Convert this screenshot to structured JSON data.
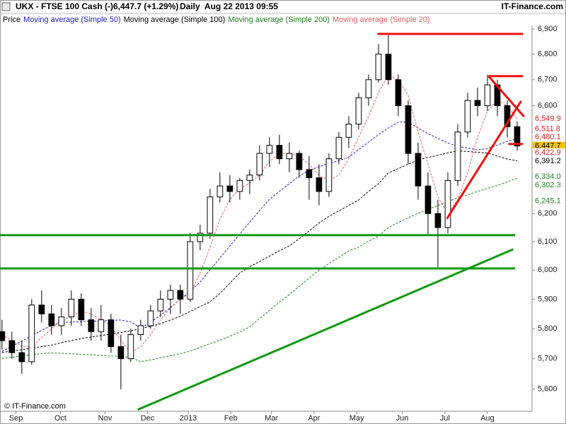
{
  "chart_data": {
    "type": "candlestick",
    "title": "UKX - FTSE 100 Cash (-)",
    "subtitle": "6,447.7 (+1.29%)",
    "date_label": "Daily  Aug 22 2013 09:55",
    "source": "IT-Finance.com",
    "watermark": "© IT-Finance.com",
    "price_legend": "Price",
    "up_color": "#ffffff",
    "down_color": "#000000",
    "log_scale": true,
    "x": [
      0,
      1,
      2,
      3,
      4,
      5,
      6,
      7,
      8,
      9,
      10,
      11,
      12,
      13,
      14,
      15,
      16,
      17,
      18,
      19,
      20,
      21,
      22,
      23,
      24,
      25,
      26,
      27,
      28,
      29,
      30,
      31,
      32,
      33,
      34,
      35,
      36,
      37,
      38,
      39,
      40,
      41,
      42,
      43,
      44,
      45,
      46,
      47,
      48,
      49,
      50,
      51,
      52
    ],
    "open": [
      5790,
      5760,
      5720,
      5690,
      5880,
      5850,
      5810,
      5840,
      5900,
      5830,
      5790,
      5830,
      5740,
      5700,
      5780,
      5810,
      5860,
      5900,
      5930,
      5900,
      6100,
      6130,
      6260,
      6300,
      6280,
      6320,
      6340,
      6420,
      6450,
      6400,
      6420,
      6360,
      6330,
      6280,
      6400,
      6480,
      6530,
      6630,
      6700,
      6800,
      6700,
      6600,
      6420,
      6300,
      6200,
      6150,
      6320,
      6500,
      6620,
      6600,
      6680,
      6600,
      6520
    ],
    "high": [
      5830,
      5790,
      5760,
      5900,
      5930,
      5880,
      5870,
      5930,
      5920,
      5870,
      5880,
      5850,
      5780,
      5800,
      5830,
      5880,
      5930,
      5950,
      5950,
      6130,
      6160,
      6290,
      6350,
      6340,
      6330,
      6360,
      6450,
      6480,
      6490,
      6460,
      6430,
      6410,
      6380,
      6420,
      6500,
      6560,
      6650,
      6720,
      6840,
      6875,
      6720,
      6620,
      6460,
      6350,
      6250,
      6350,
      6530,
      6650,
      6670,
      6720,
      6700,
      6620,
      6540
    ],
    "low": [
      5730,
      5700,
      5650,
      5680,
      5820,
      5780,
      5780,
      5810,
      5810,
      5760,
      5760,
      5720,
      5600,
      5690,
      5760,
      5800,
      5840,
      5850,
      5850,
      5890,
      6070,
      6110,
      6240,
      6240,
      6250,
      6270,
      6320,
      6370,
      6380,
      6350,
      6330,
      6250,
      6230,
      6260,
      6380,
      6440,
      6510,
      6600,
      6690,
      6680,
      6560,
      6380,
      6250,
      6120,
      6010,
      6130,
      6300,
      6480,
      6560,
      6580,
      6560,
      6480,
      6430
    ],
    "close": [
      5760,
      5720,
      5690,
      5880,
      5850,
      5810,
      5840,
      5900,
      5830,
      5790,
      5830,
      5740,
      5700,
      5780,
      5810,
      5860,
      5900,
      5930,
      5900,
      6100,
      6130,
      6260,
      6300,
      6280,
      6320,
      6340,
      6420,
      6450,
      6400,
      6420,
      6360,
      6330,
      6280,
      6400,
      6480,
      6530,
      6630,
      6700,
      6800,
      6700,
      6600,
      6420,
      6300,
      6200,
      6150,
      6320,
      6500,
      6620,
      6600,
      6680,
      6600,
      6520,
      6447.7
    ],
    "series": [
      {
        "name": "Moving average (Simple 50)",
        "color": "#2020c0",
        "values": [
          5724,
          5741,
          5759,
          5776,
          5794,
          5811,
          5821,
          5822,
          5824,
          5825,
          5826,
          5828,
          5829,
          5823,
          5802,
          5822,
          5845,
          5872,
          5900,
          5928,
          5959,
          6001,
          6043,
          6085,
          6127,
          6169,
          6211,
          6252,
          6280,
          6308,
          6336,
          6357,
          6371,
          6383,
          6393,
          6406,
          6434,
          6462,
          6490,
          6515,
          6538,
          6538,
          6515,
          6494,
          6476,
          6459,
          6446,
          6440,
          6433,
          6438,
          6451,
          6464,
          6476
        ]
      },
      {
        "name": "Moving average (Simple 100)",
        "color": "#000000",
        "values": [
          5721,
          5725,
          5730,
          5735,
          5740,
          5745,
          5753,
          5760,
          5767,
          5772,
          5777,
          5782,
          5787,
          5793,
          5800,
          5808,
          5817,
          5829,
          5842,
          5858,
          5875,
          5891,
          5920,
          5955,
          5990,
          6012,
          6030,
          6049,
          6068,
          6085,
          6110,
          6138,
          6166,
          6190,
          6210,
          6229,
          6249,
          6280,
          6308,
          6348,
          6364,
          6380,
          6396,
          6405,
          6413,
          6422,
          6430,
          6427,
          6424,
          6421,
          6410,
          6399,
          6393
        ]
      },
      {
        "name": "Moving average (Simple 200)",
        "color": "#208020",
        "values": [
          5701,
          5705,
          5709,
          5713,
          5717,
          5719,
          5718,
          5716,
          5714,
          5713,
          5711,
          5709,
          5707,
          5705,
          5690,
          5696,
          5703,
          5710,
          5717,
          5725,
          5738,
          5750,
          5761,
          5775,
          5789,
          5806,
          5834,
          5862,
          5890,
          5916,
          5944,
          5972,
          6000,
          6023,
          6045,
          6067,
          6081,
          6101,
          6120,
          6150,
          6168,
          6185,
          6201,
          6215,
          6229,
          6243,
          6257,
          6268,
          6280,
          6291,
          6302,
          6315,
          6328
        ]
      },
      {
        "name": "Moving average (Simple 20)",
        "color": "#e06060",
        "values": [
          5780,
          5760,
          5740,
          5740,
          5770,
          5800,
          5830,
          5840,
          5860,
          5850,
          5830,
          5810,
          5760,
          5720,
          5740,
          5780,
          5830,
          5870,
          5900,
          5920,
          5990,
          6080,
          6180,
          6250,
          6290,
          6310,
          6340,
          6390,
          6420,
          6420,
          6410,
          6380,
          6340,
          6320,
          6340,
          6400,
          6480,
          6560,
          6650,
          6720,
          6700,
          6640,
          6500,
          6380,
          6260,
          6200,
          6250,
          6350,
          6480,
          6580,
          6620,
          6600,
          6550
        ]
      }
    ],
    "xlim": [
      -0.2,
      53.5
    ],
    "xticks": [
      {
        "value": 1.4,
        "label": "Sep"
      },
      {
        "value": 5.9,
        "label": "Oct"
      },
      {
        "value": 10.4,
        "label": "Nov"
      },
      {
        "value": 14.7,
        "label": "Dec"
      },
      {
        "value": 18.8,
        "label": "2013"
      },
      {
        "value": 23.1,
        "label": "Feb"
      },
      {
        "value": 27.2,
        "label": "Mar"
      },
      {
        "value": 31.5,
        "label": "Apr"
      },
      {
        "value": 35.8,
        "label": "May"
      },
      {
        "value": 40.4,
        "label": "Jun"
      },
      {
        "value": 44.7,
        "label": "Jul"
      },
      {
        "value": 49.0,
        "label": "Aug"
      }
    ],
    "ylim": [
      5529,
      6914
    ],
    "yticks": [
      {
        "value": 5600,
        "label": "5,600"
      },
      {
        "value": 5700,
        "label": "5,700"
      },
      {
        "value": 5800,
        "label": "5,800"
      },
      {
        "value": 5900,
        "label": "5,900"
      },
      {
        "value": 6000,
        "label": "6,000"
      },
      {
        "value": 6100,
        "label": "6,100"
      },
      {
        "value": 6200,
        "label": "6,200"
      },
      {
        "value": 6300,
        "label": "6,300"
      },
      {
        "value": 6400,
        "label": "6,400"
      },
      {
        "value": 6500,
        "label": "6,500"
      },
      {
        "value": 6600,
        "label": "6,600"
      },
      {
        "value": 6700,
        "label": "6,700"
      },
      {
        "value": 6800,
        "label": "6,800"
      },
      {
        "value": 6900,
        "label": "6,900"
      }
    ],
    "price_labels": [
      {
        "value": 6549.9,
        "label": "6,549.9",
        "color": "#d02020"
      },
      {
        "value": 6511.8,
        "label": "6,511.8",
        "color": "#d02020"
      },
      {
        "value": 6480.1,
        "label": "6,480.1",
        "color": "#d02020"
      },
      {
        "value": 6447.7,
        "label": "6,447.7",
        "color": "#000000",
        "background": "#f5c400"
      },
      {
        "value": 6422.9,
        "label": "6,422.9",
        "color": "#d02020"
      },
      {
        "value": 6391.2,
        "label": "6,391.2",
        "color": "#000000"
      },
      {
        "value": 6334.0,
        "label": "6,334.0",
        "color": "#208020"
      },
      {
        "value": 6302.3,
        "label": "6,302.3",
        "color": "#208020"
      },
      {
        "value": 6245.1,
        "label": "6,245.1",
        "color": "#208020"
      }
    ],
    "drawings": [
      {
        "color": "#ee1111",
        "points": [
          [
            37.9,
            6880
          ],
          [
            52.6,
            6880
          ]
        ]
      },
      {
        "color": "#ee1111",
        "points": [
          [
            49.1,
            6714
          ],
          [
            52.6,
            6714
          ]
        ]
      },
      {
        "color": "#ee1111",
        "points": [
          [
            44.9,
            6181
          ],
          [
            52.4,
            6618
          ]
        ]
      },
      {
        "color": "#ee1111",
        "points": [
          [
            49.1,
            6714
          ],
          [
            52.7,
            6558
          ]
        ]
      },
      {
        "color": "#ee1111",
        "points": [
          [
            51.1,
            6455
          ],
          [
            52.6,
            6455
          ]
        ]
      },
      {
        "color": "#119911",
        "points": [
          [
            -0.2,
            6123
          ],
          [
            51.8,
            6123
          ]
        ]
      },
      {
        "color": "#119911",
        "points": [
          [
            -0.2,
            6006
          ],
          [
            51.8,
            6006
          ]
        ]
      },
      {
        "color": "#119911",
        "points": [
          [
            13.7,
            5534
          ],
          [
            51.6,
            6073
          ]
        ]
      }
    ]
  }
}
